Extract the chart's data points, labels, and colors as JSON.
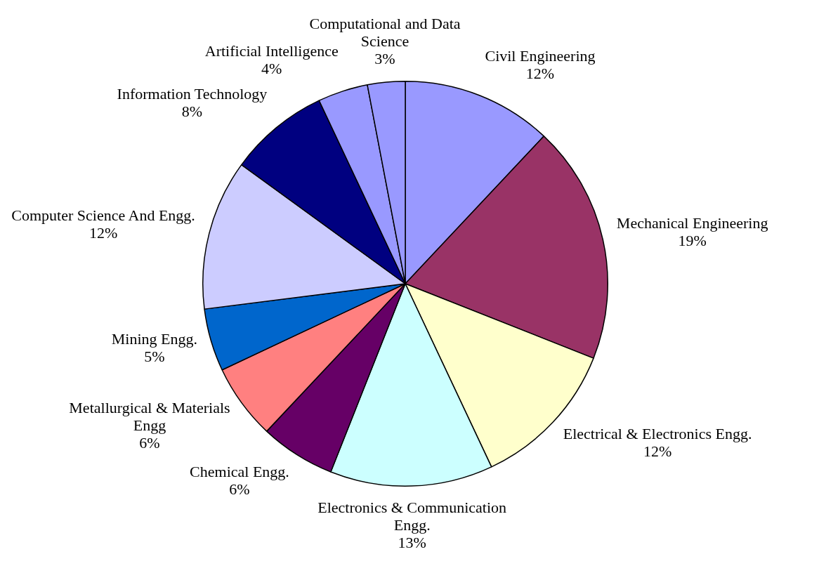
{
  "chart_data": {
    "type": "pie",
    "categories": [
      "Civil Engineering",
      "Mechanical Engineering",
      "Electrical & Electronics Engg.",
      "Electronics & Communication Engg.",
      "Chemical Engg.",
      "Metallurgical & Materials Engg",
      "Mining Engg.",
      "Computer Science And Engg.",
      "Information Technology",
      "Artificial Intelligence",
      "Computational and Data Science"
    ],
    "values": [
      12,
      19,
      12,
      13,
      6,
      6,
      5,
      12,
      8,
      4,
      3
    ],
    "value_labels": [
      "12%",
      "19%",
      "12%",
      "13%",
      "6%",
      "6%",
      "5%",
      "12%",
      "8%",
      "4%",
      "3%"
    ],
    "colors": [
      "#9999ff",
      "#993366",
      "#ffffcc",
      "#ccffff",
      "#660066",
      "#ff8080",
      "#0066cc",
      "#ccccff",
      "#000080",
      "#9999ff",
      "#9999ff"
    ],
    "legend": false
  }
}
